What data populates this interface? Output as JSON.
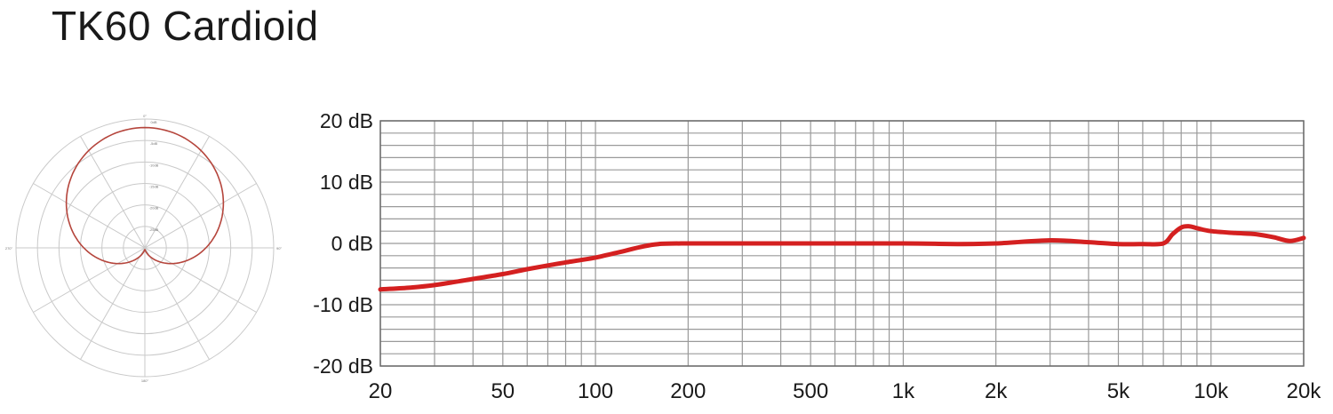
{
  "title": "TK60 Cardioid",
  "colors": {
    "curve": "#d42020",
    "grid": "#9a9a9a",
    "polar_curve": "#b5453c",
    "polar_grid": "#c9c9c9"
  },
  "polar_pattern": {
    "pattern": "cardioid",
    "angle_labels": [
      "0°",
      "90°",
      "180°",
      "270°"
    ],
    "ring_labels": [
      "0dB",
      "-5dB",
      "-10dB",
      "-15dB",
      "-20dB",
      "-25dB"
    ]
  },
  "chart_data": {
    "type": "line",
    "title": "",
    "xlabel": "",
    "ylabel": "",
    "xscale": "log",
    "xlim": [
      20,
      20000
    ],
    "ylim": [
      -20,
      20
    ],
    "grid": true,
    "x_ticks": [
      {
        "value": 20,
        "label": "20"
      },
      {
        "value": 50,
        "label": "50"
      },
      {
        "value": 100,
        "label": "100"
      },
      {
        "value": 200,
        "label": "200"
      },
      {
        "value": 500,
        "label": "500"
      },
      {
        "value": 1000,
        "label": "1k"
      },
      {
        "value": 2000,
        "label": "2k"
      },
      {
        "value": 5000,
        "label": "5k"
      },
      {
        "value": 10000,
        "label": "10k"
      },
      {
        "value": 20000,
        "label": "20k"
      }
    ],
    "y_ticks": [
      {
        "value": 20,
        "label": "20 dB"
      },
      {
        "value": 10,
        "label": "10 dB"
      },
      {
        "value": 0,
        "label": "0 dB"
      },
      {
        "value": -10,
        "label": "-10 dB"
      },
      {
        "value": -20,
        "label": "-20 dB"
      }
    ],
    "series": [
      {
        "x": [
          20,
          25,
          30,
          40,
          50,
          60,
          70,
          80,
          90,
          100,
          120,
          140,
          160,
          200,
          300,
          500,
          1000,
          1500,
          2000,
          3000,
          4000,
          5000,
          6000,
          7000,
          7500,
          8000,
          8500,
          9000,
          10000,
          12000,
          14000,
          16000,
          18000,
          20000
        ],
        "y": [
          -7.5,
          -7.2,
          -6.8,
          -5.8,
          -5.0,
          -4.2,
          -3.6,
          -3.1,
          -2.7,
          -2.3,
          -1.4,
          -0.6,
          -0.1,
          0,
          0,
          0,
          0,
          -0.1,
          0,
          0.5,
          0.2,
          -0.1,
          -0.1,
          0,
          1.5,
          2.6,
          2.8,
          2.5,
          2.0,
          1.7,
          1.5,
          1.0,
          0.4,
          0.9
        ]
      }
    ]
  }
}
